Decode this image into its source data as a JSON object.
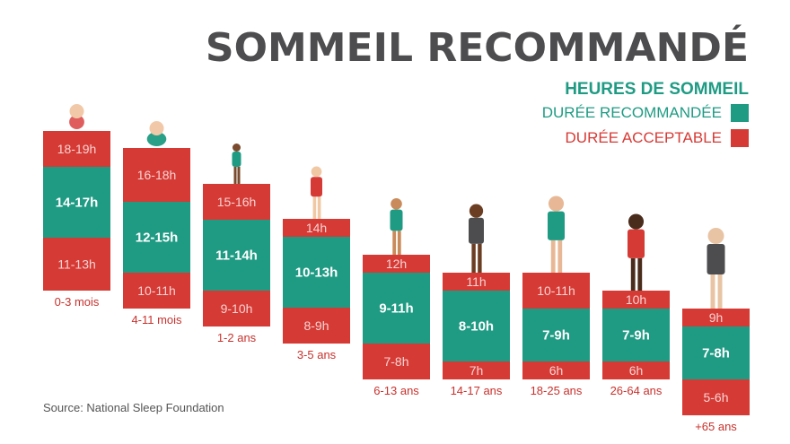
{
  "title": "SOMMEIL RECOMMANDÉ",
  "legend": {
    "title": "HEURES DE SOMMEIL",
    "recommended": "DURÉE RECOMMANDÉE",
    "acceptable": "DURÉE ACCEPTABLE"
  },
  "source": "Source: National Sleep Foundation",
  "colors": {
    "recommended": "#1f9b84",
    "acceptable": "#d63a35",
    "text_dark": "#4d4d4f",
    "label_red": "#c8322d"
  },
  "chart_data": {
    "type": "bar",
    "categories": [
      "0-3 mois",
      "4-11 mois",
      "1-2 ans",
      "3-5 ans",
      "6-13 ans",
      "14-17 ans",
      "18-25 ans",
      "26-64 ans",
      "+65 ans"
    ],
    "series": [
      {
        "name": "DURÉE ACCEPTABLE",
        "values": [
          [
            11,
            13
          ],
          [
            10,
            11
          ],
          [
            9,
            10
          ],
          [
            8,
            9
          ],
          [
            7,
            8
          ],
          [
            7,
            7
          ],
          [
            6,
            6
          ],
          [
            6,
            6
          ],
          [
            5,
            6
          ]
        ]
      },
      {
        "name": "DURÉE RECOMMANDÉE",
        "values": [
          [
            14,
            17
          ],
          [
            12,
            15
          ],
          [
            11,
            14
          ],
          [
            10,
            13
          ],
          [
            9,
            11
          ],
          [
            8,
            10
          ],
          [
            7,
            9
          ],
          [
            7,
            9
          ],
          [
            7,
            8
          ]
        ]
      },
      {
        "name": "DURÉE ACCEPTABLE",
        "values": [
          [
            18,
            19
          ],
          [
            16,
            18
          ],
          [
            15,
            16
          ],
          [
            14,
            14
          ],
          [
            12,
            12
          ],
          [
            11,
            11
          ],
          [
            10,
            11
          ],
          [
            10,
            10
          ],
          [
            9,
            9
          ]
        ]
      }
    ],
    "labels": [
      {
        "low": "11-13h",
        "mid": "14-17h",
        "high": "18-19h"
      },
      {
        "low": "10-11h",
        "mid": "12-15h",
        "high": "16-18h"
      },
      {
        "low": "9-10h",
        "mid": "11-14h",
        "high": "15-16h"
      },
      {
        "low": "8-9h",
        "mid": "10-13h",
        "high": "14h"
      },
      {
        "low": "7-8h",
        "mid": "9-11h",
        "high": "12h"
      },
      {
        "low": "7h",
        "mid": "8-10h",
        "high": "11h"
      },
      {
        "low": "6h",
        "mid": "7-9h",
        "high": "10-11h"
      },
      {
        "low": "6h",
        "mid": "7-9h",
        "high": "10h"
      },
      {
        "low": "5-6h",
        "mid": "7-8h",
        "high": "9h"
      }
    ],
    "grid": false,
    "legend_position": "top-right"
  }
}
